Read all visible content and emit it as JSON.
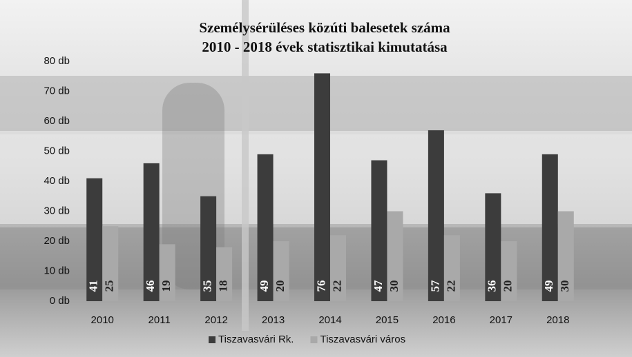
{
  "chart_data": {
    "type": "bar",
    "title": "Személysérüléses közúti balesetek száma",
    "subtitle": "2010 - 2018 évek statisztikai kimutatása",
    "categories": [
      "2010",
      "2011",
      "2012",
      "2013",
      "2014",
      "2015",
      "2016",
      "2017",
      "2018"
    ],
    "series": [
      {
        "name": "Tiszavasvári Rk.",
        "color": "#3c3c3c",
        "values": [
          41,
          46,
          35,
          49,
          76,
          47,
          57,
          36,
          49
        ]
      },
      {
        "name": "Tiszavasvári város",
        "color": "#a9a9a9",
        "values": [
          25,
          19,
          18,
          20,
          22,
          30,
          22,
          20,
          30
        ]
      }
    ],
    "ylim": [
      0,
      80
    ],
    "yticks": [
      {
        "value": 0,
        "label": "0 db"
      },
      {
        "value": 10,
        "label": "10 db"
      },
      {
        "value": 20,
        "label": "20 db"
      },
      {
        "value": 30,
        "label": "30 db"
      },
      {
        "value": 40,
        "label": "40 db"
      },
      {
        "value": 50,
        "label": "50 db"
      },
      {
        "value": 60,
        "label": "60 db"
      },
      {
        "value": 70,
        "label": "70 db"
      },
      {
        "value": 80,
        "label": "80 db"
      }
    ],
    "legend": "bottom"
  }
}
